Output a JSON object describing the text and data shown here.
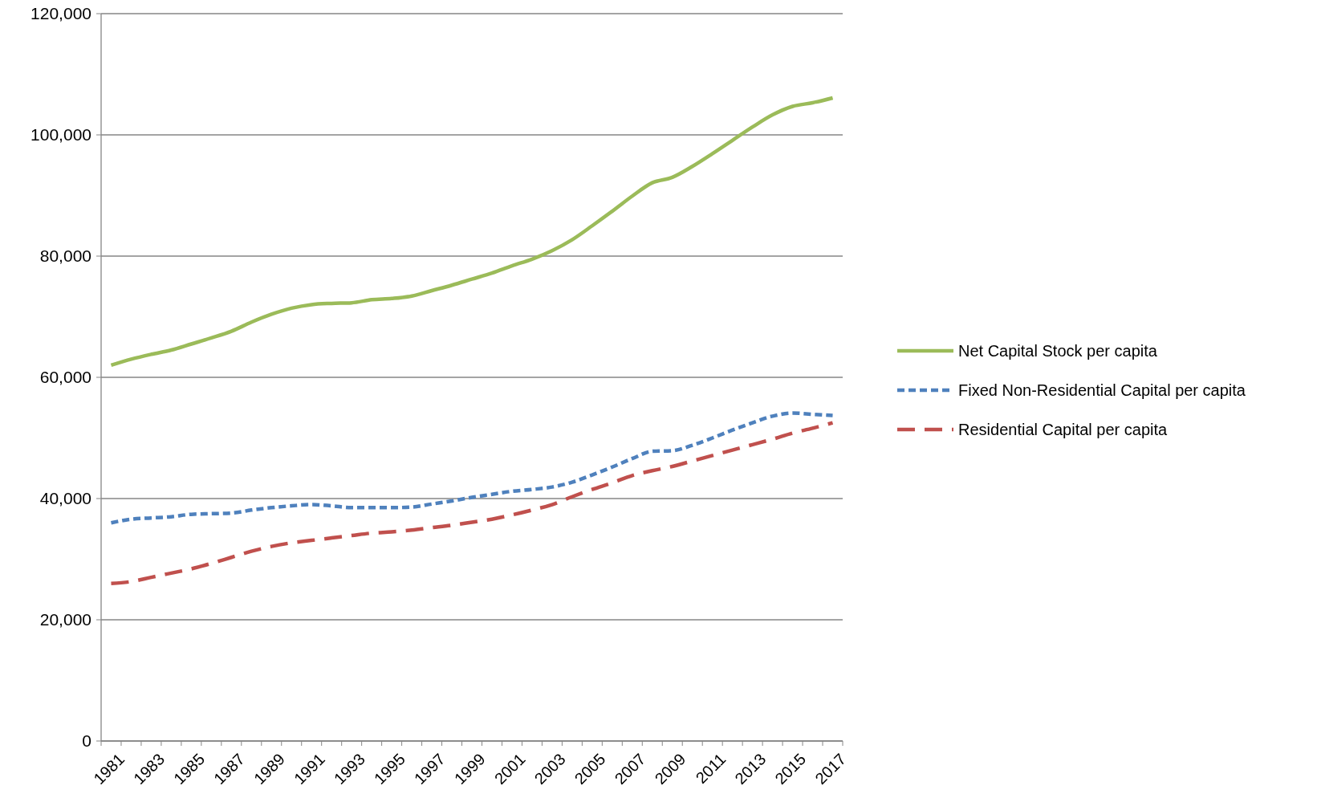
{
  "chart_data": {
    "type": "line",
    "categories": [
      "1981",
      null,
      "1983",
      null,
      "1985",
      null,
      "1987",
      null,
      "1989",
      null,
      "1991",
      null,
      "1993",
      null,
      "1995",
      null,
      "1997",
      null,
      "1999",
      null,
      "2001",
      null,
      "2003",
      null,
      "2005",
      null,
      "2007",
      null,
      "2009",
      null,
      "2011",
      null,
      "2013",
      null,
      "2015",
      null,
      "2017"
    ],
    "series": [
      {
        "name": "Net Capital Stock per capita",
        "color": "#9bbb59",
        "line_style": "solid",
        "values": [
          62000,
          63000,
          63800,
          64500,
          65500,
          66500,
          67600,
          69100,
          70400,
          71400,
          72000,
          72200,
          72300,
          72800,
          73000,
          73400,
          74300,
          75200,
          76200,
          77200,
          78400,
          79500,
          80900,
          82700,
          85000,
          87400,
          89900,
          92100,
          93000,
          94800,
          96900,
          99100,
          101300,
          103300,
          104700,
          105300,
          106100
        ]
      },
      {
        "name": "Fixed Non-Residential Capital per capita",
        "color": "#4f81bd",
        "line_style": "dotted",
        "values": [
          36000,
          36600,
          36800,
          37000,
          37400,
          37500,
          37600,
          38100,
          38500,
          38800,
          39000,
          38800,
          38500,
          38500,
          38500,
          38600,
          39100,
          39600,
          40200,
          40700,
          41200,
          41500,
          41900,
          42700,
          43900,
          45200,
          46600,
          47800,
          47900,
          48800,
          50000,
          51300,
          52500,
          53600,
          54100,
          53900,
          53700
        ]
      },
      {
        "name": "Residential Capital per capita",
        "color": "#c0504d",
        "line_style": "dashed",
        "values": [
          26000,
          26300,
          27000,
          27700,
          28400,
          29300,
          30300,
          31300,
          32100,
          32700,
          33100,
          33500,
          33900,
          34300,
          34500,
          34800,
          35200,
          35600,
          36100,
          36600,
          37300,
          38100,
          39000,
          40300,
          41500,
          42600,
          43800,
          44600,
          45300,
          46200,
          47100,
          48000,
          48900,
          49800,
          50800,
          51600,
          52500
        ]
      }
    ],
    "ylim": [
      0,
      120000
    ],
    "yticks": [
      {
        "value": 0,
        "label": "0"
      },
      {
        "value": 20000,
        "label": "20,000"
      },
      {
        "value": 40000,
        "label": "40,000"
      },
      {
        "value": 60000,
        "label": "60,000"
      },
      {
        "value": 80000,
        "label": "80,000"
      },
      {
        "value": 100000,
        "label": "100,000"
      },
      {
        "value": 120000,
        "label": "120,000"
      }
    ],
    "grid": "y",
    "legend": "right",
    "marker": "none"
  }
}
